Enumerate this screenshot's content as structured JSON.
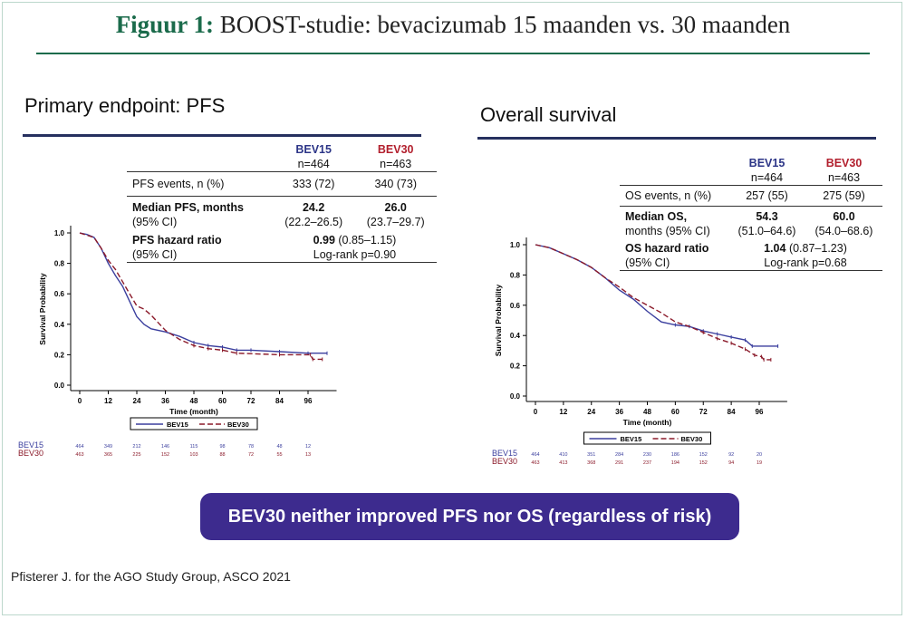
{
  "title": {
    "prefix": "Figuur 1:",
    "text": "BOOST-studie: bevacizumab 15 maanden vs. 30 maanden"
  },
  "banner": "BEV30 neither improved PFS nor OS (regardless of risk)",
  "source": "Pfisterer J. for the AGO Study Group, ASCO 2021",
  "colors": {
    "bev15": "#3b3f9e",
    "bev30": "#8b1a2a",
    "accent": "#1b6b4b",
    "banner": "#3d2b8e"
  },
  "panels": [
    {
      "title": "Primary endpoint: PFS",
      "table": {
        "h1": "BEV15",
        "h2": "BEV30",
        "n1": "n=464",
        "n2": "n=463",
        "r1": [
          "PFS events, n (%)",
          "333 (72)",
          "340 (73)"
        ],
        "r2": [
          "Median PFS, months",
          "24.2",
          "26.0"
        ],
        "r2b": [
          "(95% CI)",
          "(22.2–26.5)",
          "(23.7–29.7)"
        ],
        "r3": [
          "PFS hazard ratio",
          "0.99",
          "(0.85–1.15)"
        ],
        "r3b": [
          "(95% CI)",
          "Log-rank p=0.90"
        ]
      }
    },
    {
      "title": "Overall survival",
      "table": {
        "h1": "BEV15",
        "h2": "BEV30",
        "n1": "n=464",
        "n2": "n=463",
        "r1": [
          "OS events, n (%)",
          "257 (55)",
          "275 (59)"
        ],
        "r2": [
          "Median OS,",
          "54.3",
          "60.0"
        ],
        "r2b": [
          "months (95% CI)",
          "(51.0–64.6)",
          "(54.0–68.6)"
        ],
        "r3": [
          "OS hazard ratio",
          "1.04",
          "(0.87–1.23)"
        ],
        "r3b": [
          "(95% CI)",
          "Log-rank p=0.68"
        ]
      }
    }
  ],
  "chart_data": [
    {
      "type": "line",
      "xlabel": "Time (month)",
      "ylabel": "Survival Probability",
      "xlim": [
        0,
        104
      ],
      "ylim": [
        0,
        1
      ],
      "xticks": [
        0,
        12,
        24,
        36,
        48,
        60,
        72,
        84,
        96
      ],
      "yticks": [
        "0.0",
        "0.2",
        "0.4",
        "0.6",
        "0.8",
        "1.0"
      ],
      "legend": "bottom",
      "series": [
        {
          "name": "BEV15",
          "style": "solid",
          "points": [
            [
              0,
              1
            ],
            [
              3,
              0.99
            ],
            [
              6,
              0.97
            ],
            [
              9,
              0.9
            ],
            [
              12,
              0.8
            ],
            [
              15,
              0.72
            ],
            [
              18,
              0.65
            ],
            [
              21,
              0.55
            ],
            [
              24,
              0.45
            ],
            [
              27,
              0.4
            ],
            [
              30,
              0.37
            ],
            [
              36,
              0.35
            ],
            [
              42,
              0.32
            ],
            [
              48,
              0.28
            ],
            [
              54,
              0.26
            ],
            [
              60,
              0.25
            ],
            [
              66,
              0.23
            ],
            [
              72,
              0.23
            ],
            [
              84,
              0.22
            ],
            [
              96,
              0.21
            ],
            [
              104,
              0.21
            ]
          ],
          "at_risk": [
            "464",
            "349",
            "212",
            "146",
            "115",
            "98",
            "78",
            "48",
            "12"
          ]
        },
        {
          "name": "BEV30",
          "style": "dashed",
          "points": [
            [
              0,
              1
            ],
            [
              6,
              0.97
            ],
            [
              9,
              0.9
            ],
            [
              12,
              0.82
            ],
            [
              15,
              0.76
            ],
            [
              18,
              0.68
            ],
            [
              21,
              0.6
            ],
            [
              24,
              0.52
            ],
            [
              27,
              0.5
            ],
            [
              30,
              0.46
            ],
            [
              36,
              0.36
            ],
            [
              42,
              0.3
            ],
            [
              48,
              0.26
            ],
            [
              54,
              0.24
            ],
            [
              60,
              0.23
            ],
            [
              66,
              0.21
            ],
            [
              84,
              0.2
            ],
            [
              97,
              0.2
            ],
            [
              98,
              0.17
            ],
            [
              102,
              0.17
            ]
          ],
          "at_risk": [
            "463",
            "365",
            "225",
            "152",
            "103",
            "88",
            "72",
            "55",
            "13"
          ]
        }
      ]
    },
    {
      "type": "line",
      "xlabel": "Time (month)",
      "ylabel": "Survival Probability",
      "xlim": [
        0,
        104
      ],
      "ylim": [
        0,
        1
      ],
      "xticks": [
        0,
        12,
        24,
        36,
        48,
        60,
        72,
        84,
        96
      ],
      "yticks": [
        "0.0",
        "0.2",
        "0.4",
        "0.6",
        "0.8",
        "1.0"
      ],
      "legend": "bottom",
      "series": [
        {
          "name": "BEV15",
          "style": "solid",
          "points": [
            [
              0,
              1
            ],
            [
              6,
              0.98
            ],
            [
              12,
              0.94
            ],
            [
              18,
              0.9
            ],
            [
              24,
              0.85
            ],
            [
              30,
              0.78
            ],
            [
              36,
              0.7
            ],
            [
              42,
              0.64
            ],
            [
              48,
              0.56
            ],
            [
              54,
              0.49
            ],
            [
              60,
              0.47
            ],
            [
              66,
              0.46
            ],
            [
              72,
              0.43
            ],
            [
              78,
              0.41
            ],
            [
              84,
              0.39
            ],
            [
              90,
              0.37
            ],
            [
              93,
              0.33
            ],
            [
              104,
              0.33
            ]
          ],
          "at_risk": [
            "464",
            "410",
            "351",
            "284",
            "230",
            "186",
            "152",
            "92",
            "20"
          ]
        },
        {
          "name": "BEV30",
          "style": "dashed",
          "points": [
            [
              0,
              1
            ],
            [
              6,
              0.98
            ],
            [
              12,
              0.94
            ],
            [
              18,
              0.9
            ],
            [
              24,
              0.85
            ],
            [
              30,
              0.78
            ],
            [
              36,
              0.72
            ],
            [
              42,
              0.65
            ],
            [
              48,
              0.6
            ],
            [
              54,
              0.55
            ],
            [
              60,
              0.49
            ],
            [
              66,
              0.46
            ],
            [
              72,
              0.42
            ],
            [
              78,
              0.38
            ],
            [
              84,
              0.35
            ],
            [
              90,
              0.31
            ],
            [
              94,
              0.27
            ],
            [
              97,
              0.26
            ],
            [
              98,
              0.24
            ],
            [
              101,
              0.24
            ]
          ],
          "at_risk": [
            "463",
            "413",
            "368",
            "291",
            "237",
            "194",
            "152",
            "94",
            "19"
          ]
        }
      ]
    }
  ]
}
